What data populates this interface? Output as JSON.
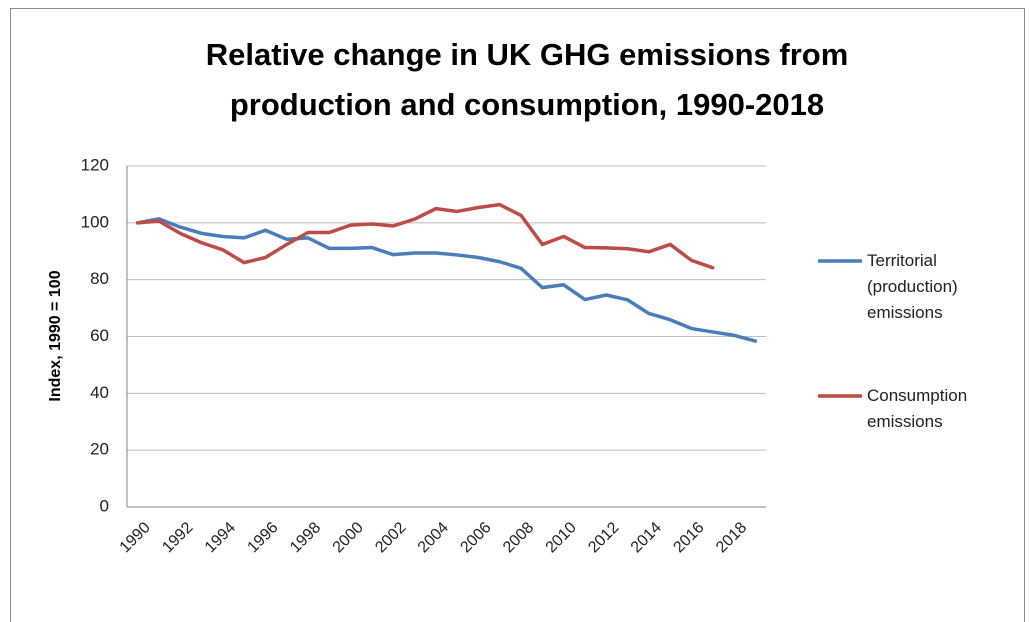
{
  "chart_data": {
    "type": "line",
    "title": "Relative change in UK GHG emissions from production and consumption, 1990-2018",
    "y_label": "Index, 1990 = 100",
    "categories": [
      "1990",
      null,
      "1992",
      null,
      "1994",
      null,
      "1996",
      null,
      "1998",
      null,
      "2000",
      null,
      "2002",
      null,
      "2004",
      null,
      "2006",
      null,
      "2008",
      null,
      "2010",
      null,
      "2012",
      null,
      "2014",
      null,
      "2016",
      null,
      "2018",
      null
    ],
    "series": [
      {
        "name": "Territorial (production) emissions",
        "color": "#4a7ebb",
        "values": [
          100,
          101.4,
          98.5,
          96.3,
          95.2,
          94.7,
          97.4,
          94.2,
          94.7,
          91,
          91,
          91.3,
          88.8,
          89.4,
          89.4,
          88.7,
          87.8,
          86.3,
          84,
          77.2,
          78.2,
          73,
          74.6,
          72.9,
          68.1,
          65.9,
          62.8,
          61.6,
          60.4,
          58.4
        ]
      },
      {
        "name": "Consumption emissions",
        "color": "#be4b48",
        "values": [
          100,
          100.6,
          96.3,
          93,
          90.5,
          86,
          87.8,
          92.4,
          96.6,
          96.6,
          99.2,
          99.6,
          98.9,
          101.3,
          105,
          104,
          105.4,
          106.4,
          102.6,
          92.4,
          95.2,
          91.3,
          91.2,
          90.9,
          89.8,
          92.4,
          86.8,
          84.2,
          null,
          null
        ]
      }
    ],
    "ylim": [
      0,
      120
    ],
    "yticks": [
      0,
      20,
      40,
      60,
      80,
      100,
      120
    ],
    "grid": true,
    "legend": "right"
  }
}
